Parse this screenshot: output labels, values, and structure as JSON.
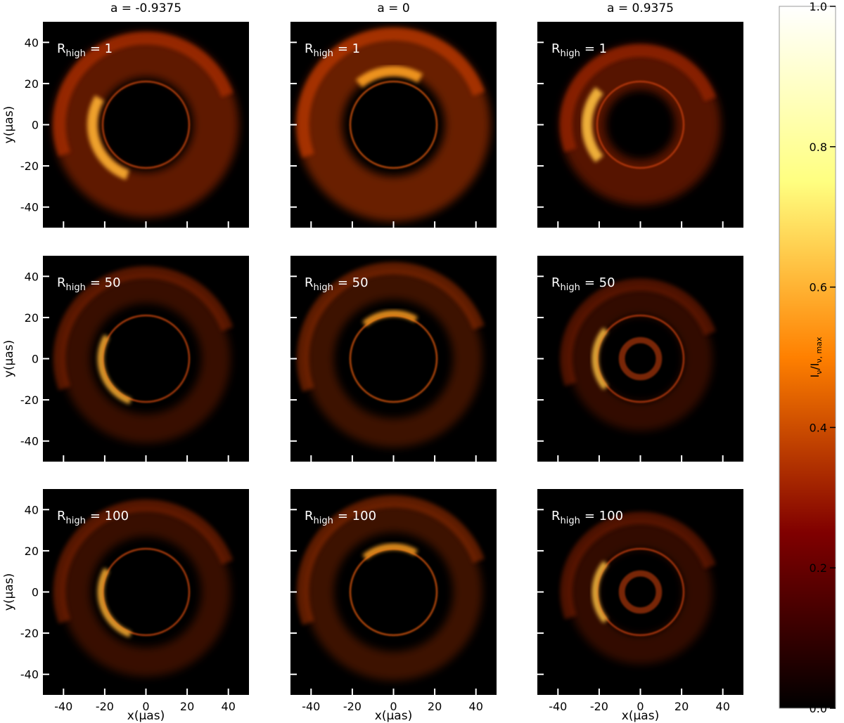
{
  "chart_data": {
    "type": "image",
    "columns": [
      "a = -0.9375",
      "a = 0",
      "a = 0.9375"
    ],
    "rows": [
      {
        "symbol": "R",
        "subscript": "high",
        "value": "= 1"
      },
      {
        "symbol": "R",
        "subscript": "high",
        "value": "= 50"
      },
      {
        "symbol": "R",
        "subscript": "high",
        "value": "= 100"
      }
    ],
    "xlabel": "x(μas)",
    "ylabel": "y(μas)",
    "xlim": [
      -50,
      50
    ],
    "ylim": [
      -50,
      50
    ],
    "xticks": [
      -40,
      -20,
      0,
      20,
      40
    ],
    "yticks": [
      -40,
      -20,
      0,
      20,
      40
    ],
    "colorbar": {
      "label": [
        "I",
        "ν",
        "/I",
        "ν, max"
      ],
      "colormap": "afmhot",
      "ylim": [
        0,
        1
      ],
      "yticks": [
        {
          "value": 0,
          "label": "0.0"
        },
        {
          "value": 0.2,
          "label": "0.2"
        },
        {
          "value": 0.4,
          "label": "0.4"
        },
        {
          "value": 0.6,
          "label": "0.6"
        },
        {
          "value": 0.8,
          "label": "0.8"
        },
        {
          "value": 1,
          "label": "1.0"
        }
      ]
    }
  }
}
